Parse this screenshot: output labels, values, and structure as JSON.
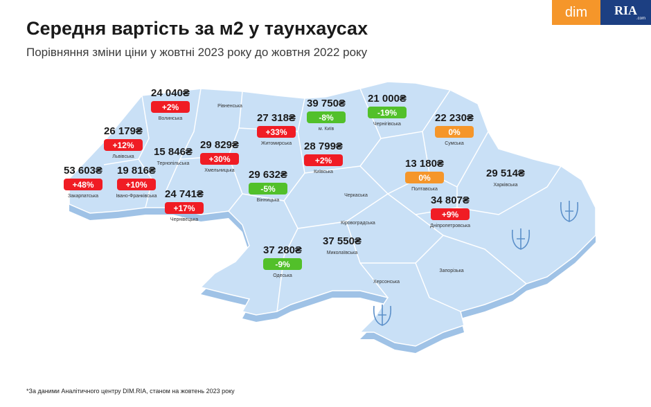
{
  "header": {
    "title": "Середня вартість за м2 у таунхаусах",
    "subtitle": "Порівняння зміни ціни у жовтні 2023 року до жовтня 2022 року"
  },
  "logo": {
    "dim": "dim",
    "ria": "RIA",
    "ria_domain": ".com"
  },
  "colors": {
    "up": "#f01c24",
    "down": "#52c02a",
    "flat": "#f5962a",
    "map_fill": "#c9e0f6",
    "map_side": "#9fc2e6"
  },
  "regions": {
    "volynska": {
      "price": "24 040₴",
      "change": "+2%",
      "trend": "up",
      "name": "Волинська"
    },
    "rivnenska": {
      "name": "Рівненська"
    },
    "kyiv_city": {
      "price": "39 750₴",
      "change": "-8%",
      "trend": "down",
      "name": "м. Київ"
    },
    "chernihivska": {
      "price": "21 000₴",
      "change": "-19%",
      "trend": "down",
      "name": "Чернігівська"
    },
    "zhytomyrska": {
      "price": "27 318₴",
      "change": "+33%",
      "trend": "up",
      "name": "Житомирська"
    },
    "sumska": {
      "price": "22 230₴",
      "change": "0%",
      "trend": "flat",
      "name": "Сумська"
    },
    "lvivska": {
      "price": "26 179₴",
      "change": "+12%",
      "trend": "up",
      "name": "Львівська"
    },
    "ternopilska": {
      "price": "15 846₴",
      "name": "Тернопільська"
    },
    "khmelnytska": {
      "price": "29 829₴",
      "change": "+30%",
      "trend": "up",
      "name": "Хмельницька"
    },
    "kyivska": {
      "price": "28 799₴",
      "change": "+2%",
      "trend": "up",
      "name": "Київська"
    },
    "zakarpatska": {
      "price": "53 603₴",
      "change": "+48%",
      "trend": "up",
      "name": "Закарпатська"
    },
    "ivano_frankivska": {
      "price": "19 816₴",
      "change": "+10%",
      "trend": "up",
      "name": "Івано-Франківська"
    },
    "vinnytska": {
      "price": "29 632₴",
      "change": "-5%",
      "trend": "down",
      "name": "Вінницька"
    },
    "cherkaska": {
      "name": "Черкаська"
    },
    "poltavska": {
      "price": "13 180₴",
      "change": "0%",
      "trend": "flat",
      "name": "Полтавська"
    },
    "kharkivska": {
      "price": "29 514₴",
      "name": "Харківська"
    },
    "chernivetska": {
      "price": "24 741₴",
      "change": "+17%",
      "trend": "up",
      "name": "Чернівецька"
    },
    "kirovohradska": {
      "name": "Кіровоградська"
    },
    "dnipropetrovska": {
      "price": "34 807₴",
      "change": "+9%",
      "trend": "up",
      "name": "Дніпропетровська"
    },
    "odeska": {
      "price": "37 280₴",
      "change": "-9%",
      "trend": "down",
      "name": "Одеська"
    },
    "mykolaivska": {
      "price": "37 550₴",
      "name": "Миколаївська"
    },
    "khersonska": {
      "name": "Херсонська"
    },
    "zaporizka": {
      "name": "Запорізька"
    }
  },
  "footnote": "*За даними Аналітичного центру DIM.RIA, станом на жовтень 2023 року"
}
